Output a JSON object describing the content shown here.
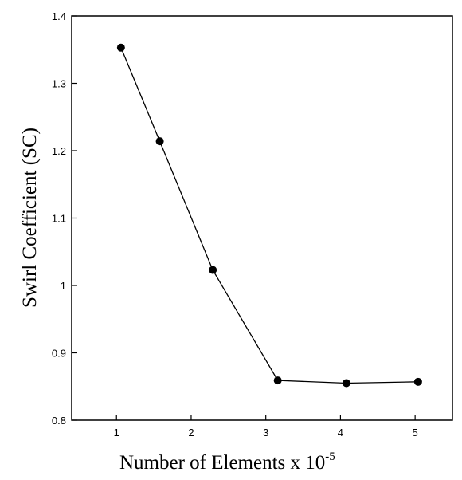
{
  "chart_data": {
    "type": "line",
    "xlabel": "Number of Elements x 10",
    "xlabel_superscript": "-5",
    "ylabel": "Swirl Coefficient (SC)",
    "xlim": [
      0.4,
      5.5
    ],
    "ylim": [
      0.8,
      1.4
    ],
    "xticks": [
      "1",
      "2",
      "3",
      "4",
      "5"
    ],
    "yticks": [
      "0.8",
      "0.9",
      "1",
      "1.1",
      "1.2",
      "1.3",
      "1.4"
    ],
    "grid": false,
    "series": [
      {
        "x": [
          1.06,
          1.58,
          2.29,
          3.16,
          4.08,
          5.04
        ],
        "y": [
          1.353,
          1.214,
          1.023,
          0.859,
          0.855,
          0.857
        ],
        "color": "#000000",
        "marker": "circle"
      }
    ]
  }
}
